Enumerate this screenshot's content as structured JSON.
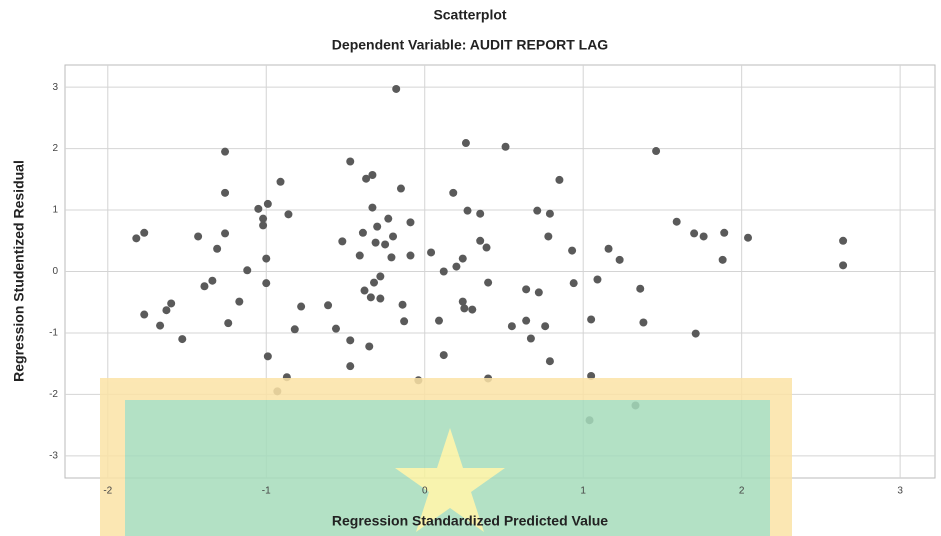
{
  "chart_data": {
    "type": "scatter",
    "title": "Scatterplot",
    "subtitle": "Dependent Variable: AUDIT REPORT LAG",
    "x_label": "Regression Standardized Predicted Value",
    "y_label": "Regression Studentized Residual",
    "color": "#5a5a5a",
    "grid": true,
    "xlim": [
      -2.27,
      3.22
    ],
    "ylim": [
      -3.36,
      3.36
    ],
    "xticks": [
      -2,
      -1,
      0,
      1,
      2,
      3
    ],
    "yticks": [
      -3,
      -2,
      -1,
      0,
      1,
      2,
      3
    ],
    "x": [
      -1.82,
      -1.77,
      -1.77,
      -1.67,
      -1.63,
      -1.6,
      -1.53,
      -1.43,
      -1.39,
      -1.34,
      -1.31,
      -1.26,
      -1.26,
      -1.26,
      -1.24,
      -1.17,
      -1.12,
      -1.05,
      -1.02,
      -1.02,
      -1.0,
      -1.0,
      -0.99,
      -0.99,
      -0.93,
      -0.91,
      -0.87,
      -0.86,
      -0.82,
      -0.78,
      -0.61,
      -0.56,
      -0.52,
      -0.47,
      -0.47,
      -0.47,
      -0.41,
      -0.39,
      -0.38,
      -0.37,
      -0.35,
      -0.34,
      -0.33,
      -0.33,
      -0.32,
      -0.31,
      -0.3,
      -0.28,
      -0.28,
      -0.25,
      -0.23,
      -0.21,
      -0.2,
      -0.18,
      -0.15,
      -0.14,
      -0.13,
      -0.09,
      -0.09,
      -0.04,
      0.04,
      0.09,
      0.12,
      0.12,
      0.18,
      0.2,
      0.24,
      0.24,
      0.25,
      0.26,
      0.27,
      0.3,
      0.35,
      0.35,
      0.39,
      0.4,
      0.4,
      0.51,
      0.55,
      0.64,
      0.64,
      0.67,
      0.71,
      0.72,
      0.76,
      0.78,
      0.79,
      0.79,
      0.85,
      0.93,
      0.94,
      1.04,
      1.05,
      1.05,
      1.09,
      1.16,
      1.23,
      1.33,
      1.36,
      1.38,
      1.46,
      1.59,
      1.7,
      1.71,
      1.76,
      1.88,
      1.89,
      2.04,
      2.64,
      2.64
    ],
    "y": [
      0.54,
      0.63,
      -0.7,
      -0.88,
      -0.63,
      -0.52,
      -1.1,
      0.57,
      -0.24,
      -0.15,
      0.37,
      1.28,
      1.95,
      0.62,
      -0.84,
      -0.49,
      0.02,
      1.02,
      0.86,
      0.75,
      0.21,
      -0.19,
      1.1,
      -1.38,
      -1.95,
      1.46,
      -1.72,
      0.93,
      -0.94,
      -0.57,
      -0.55,
      -0.93,
      0.49,
      1.79,
      -1.12,
      -1.54,
      0.26,
      0.63,
      -0.31,
      1.51,
      -1.22,
      -0.42,
      1.04,
      1.57,
      -0.18,
      0.47,
      0.73,
      -0.08,
      -0.44,
      0.44,
      0.86,
      0.23,
      0.57,
      2.97,
      1.35,
      -0.54,
      -0.81,
      0.8,
      0.26,
      -1.77,
      0.31,
      -0.8,
      -1.36,
      0.0,
      1.28,
      0.08,
      0.21,
      -0.49,
      -0.6,
      2.09,
      0.99,
      -0.62,
      0.94,
      0.5,
      0.39,
      -1.74,
      -0.18,
      2.03,
      -0.89,
      -0.29,
      -0.8,
      -1.09,
      0.99,
      -0.34,
      -0.89,
      0.57,
      0.94,
      -1.46,
      1.49,
      0.34,
      -0.19,
      -2.42,
      -0.78,
      -1.7,
      -0.13,
      0.37,
      0.19,
      -2.18,
      -0.28,
      -0.83,
      1.96,
      0.81,
      0.62,
      -1.01,
      0.57,
      0.19,
      0.63,
      0.55,
      0.5,
      0.1
    ]
  }
}
